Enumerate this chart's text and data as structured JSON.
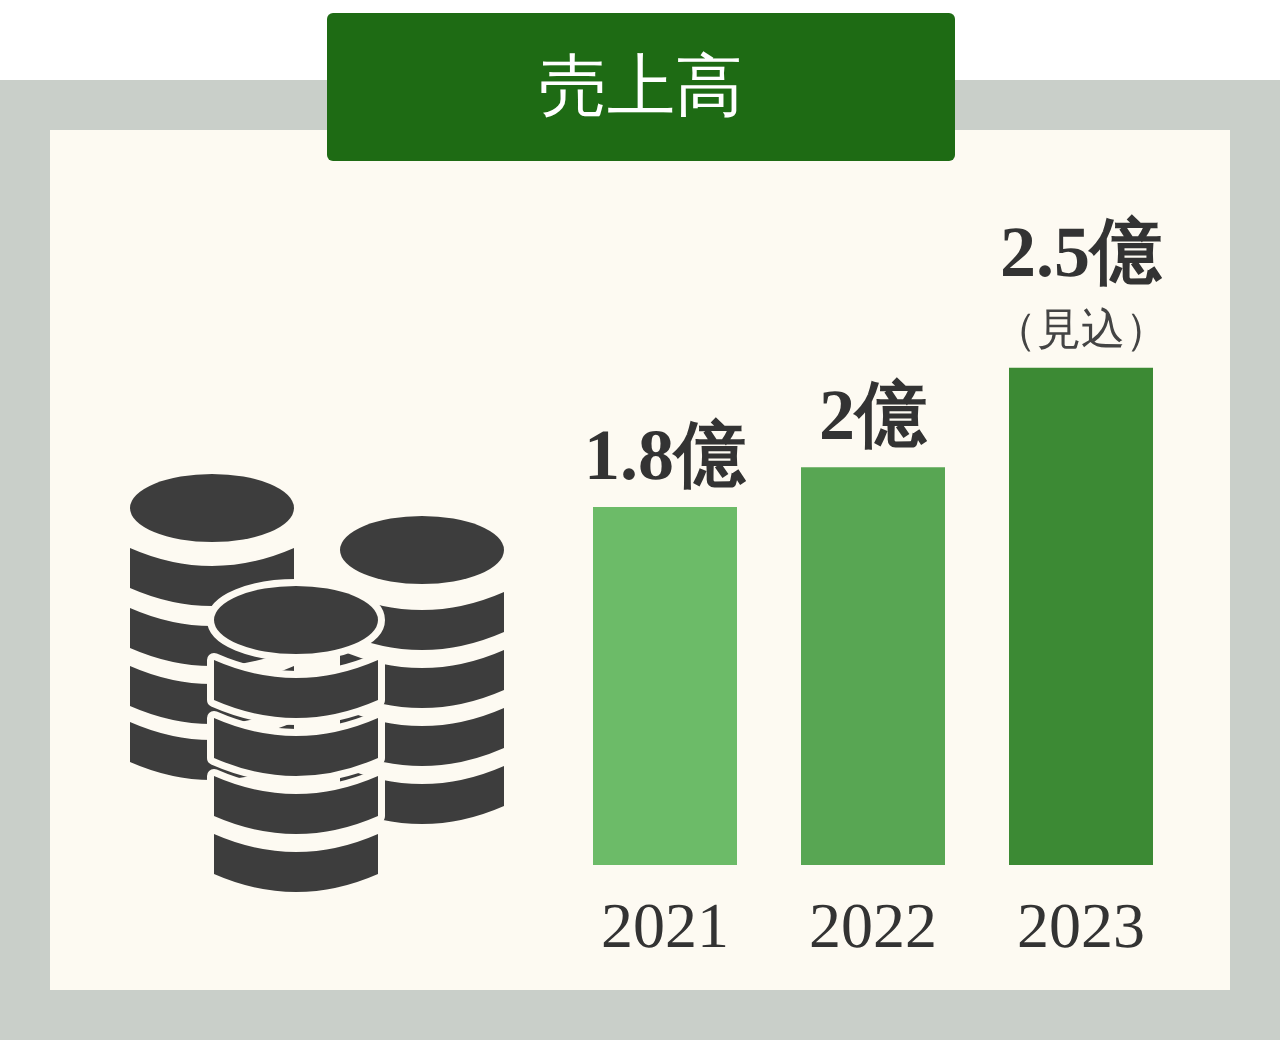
{
  "chart_data": {
    "type": "bar",
    "title": "売上高",
    "categories": [
      "2021",
      "2022",
      "2023"
    ],
    "values": [
      1.8,
      2,
      2.5
    ],
    "colors": [
      "#6cbb68",
      "#58a653",
      "#3c8a34"
    ],
    "value_labels": [
      "1.8億",
      "2億",
      "2.5億"
    ],
    "annotations": [
      {
        "text": "（見込）",
        "x": "2023",
        "y": 2.5
      }
    ],
    "tick_labels": "x"
  }
}
